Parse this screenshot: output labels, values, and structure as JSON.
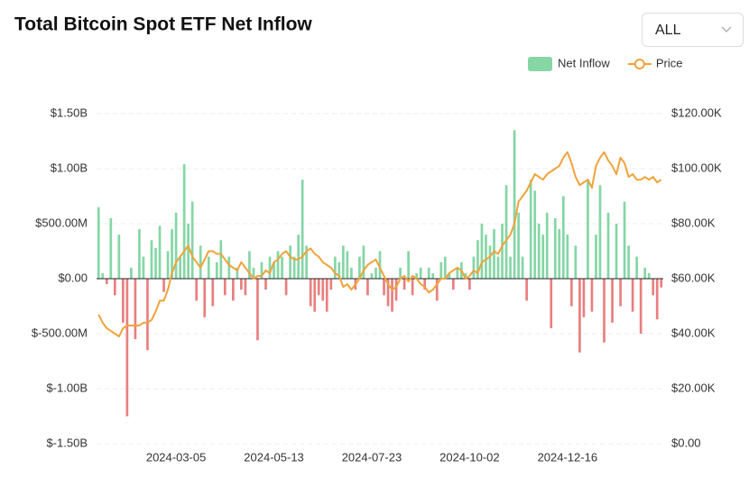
{
  "chart_data": {
    "type": "bar_line",
    "title": "Total Bitcoin Spot ETF Net Inflow",
    "categories": [
      null,
      null,
      null,
      null,
      null,
      null,
      null,
      null,
      null,
      null,
      null,
      null,
      null,
      null,
      null,
      null,
      null,
      null,
      null,
      "2024-03-05",
      null,
      null,
      null,
      null,
      null,
      null,
      null,
      null,
      null,
      null,
      null,
      null,
      null,
      null,
      null,
      null,
      null,
      null,
      null,
      null,
      null,
      null,
      null,
      "2024-05-13",
      null,
      null,
      null,
      null,
      null,
      null,
      null,
      null,
      null,
      null,
      null,
      null,
      null,
      null,
      null,
      null,
      null,
      null,
      null,
      null,
      null,
      null,
      null,
      "2024-07-23",
      null,
      null,
      null,
      null,
      null,
      null,
      null,
      null,
      null,
      null,
      null,
      null,
      null,
      null,
      null,
      null,
      null,
      null,
      null,
      null,
      null,
      null,
      null,
      "2024-10-02",
      null,
      null,
      null,
      null,
      null,
      null,
      null,
      null,
      null,
      null,
      null,
      null,
      null,
      null,
      null,
      null,
      null,
      null,
      null,
      null,
      null,
      null,
      null,
      "2024-12-16",
      null,
      null,
      null,
      null,
      null,
      null,
      null,
      null,
      null,
      null,
      null,
      null,
      null,
      null,
      null,
      null,
      null,
      null,
      null,
      null,
      null,
      null,
      null
    ],
    "series": [
      {
        "name": "Net Inflow",
        "type": "bar",
        "color": "#86d6a6",
        "negative_color": "#e88080",
        "values": [
          650000000.0,
          50000000.0,
          -50000000.0,
          550000000.0,
          -150000000.0,
          400000000.0,
          -400000000.0,
          -1250000000.0,
          100000000.0,
          -550000000.0,
          450000000.0,
          200000000.0,
          -650000000.0,
          350000000.0,
          280000000.0,
          480000000.0,
          -120000000.0,
          250000000.0,
          450000000.0,
          600000000.0,
          200000000.0,
          1040000000.0,
          500000000.0,
          700000000.0,
          -200000000.0,
          300000000.0,
          -350000000.0,
          200000000.0,
          -250000000.0,
          150000000.0,
          350000000.0,
          -150000000.0,
          200000000.0,
          -200000000.0,
          100000000.0,
          -100000000.0,
          -150000000.0,
          250000000.0,
          100000000.0,
          -560000000.0,
          150000000.0,
          -100000000.0,
          200000000.0,
          150000000.0,
          250000000.0,
          200000000.0,
          -150000000.0,
          300000000.0,
          200000000.0,
          400000000.0,
          900000000.0,
          300000000.0,
          -250000000.0,
          -300000000.0,
          -150000000.0,
          -200000000.0,
          -300000000.0,
          -100000000.0,
          200000000.0,
          150000000.0,
          300000000.0,
          250000000.0,
          100000000.0,
          -100000000.0,
          200000000.0,
          300000000.0,
          -150000000.0,
          50000000.0,
          100000000.0,
          250000000.0,
          -150000000.0,
          -250000000.0,
          -300000000.0,
          -200000000.0,
          100000000.0,
          -100000000.0,
          250000000.0,
          -150000000.0,
          50000000.0,
          100000000.0,
          -100000000.0,
          100000000.0,
          50000000.0,
          -200000000.0,
          150000000.0,
          200000000.0,
          50000000.0,
          -100000000.0,
          100000000.0,
          150000000.0,
          50000000.0,
          -100000000.0,
          200000000.0,
          350000000.0,
          500000000.0,
          400000000.0,
          300000000.0,
          450000000.0,
          200000000.0,
          500000000.0,
          850000000.0,
          200000000.0,
          1350000000.0,
          600000000.0,
          200000000.0,
          -200000000.0,
          900000000.0,
          800000000.0,
          500000000.0,
          400000000.0,
          600000000.0,
          -450000000.0,
          550000000.0,
          450000000.0,
          750000000.0,
          400000000.0,
          -250000000.0,
          300000000.0,
          -670000000.0,
          -350000000.0,
          900000000.0,
          -300000000.0,
          400000000.0,
          850000000.0,
          -580000000.0,
          600000000.0,
          -400000000.0,
          500000000.0,
          -250000000.0,
          700000000.0,
          300000000.0,
          -300000000.0,
          200000000.0,
          -500000000.0,
          100000000.0,
          50000000.0,
          -150000000.0,
          -370000000.0,
          -80000000.0
        ]
      },
      {
        "name": "Price",
        "type": "line",
        "axis": "y2",
        "color": "#f0a33a",
        "values": [
          47000,
          44000,
          42000,
          41000,
          40000,
          39000,
          42000,
          43000,
          43000,
          43000,
          43000,
          44000,
          44000,
          45000,
          48000,
          52000,
          52000,
          56000,
          62000,
          66000,
          68000,
          70000,
          72000,
          68000,
          66000,
          64000,
          67000,
          70000,
          70000,
          69000,
          69000,
          67000,
          65000,
          64000,
          63000,
          66000,
          64000,
          62000,
          60000,
          61000,
          61000,
          63000,
          62000,
          66000,
          67000,
          69000,
          70000,
          68000,
          67000,
          67000,
          68000,
          70000,
          71000,
          69000,
          68000,
          66000,
          65000,
          64000,
          62000,
          61000,
          57000,
          58000,
          56000,
          58000,
          60000,
          63000,
          65000,
          66000,
          67000,
          64000,
          61000,
          58000,
          56000,
          57000,
          60000,
          61000,
          59000,
          61000,
          60000,
          58000,
          57000,
          55000,
          56000,
          58000,
          60000,
          60000,
          62000,
          63000,
          64000,
          63000,
          60000,
          61000,
          63000,
          62000,
          66000,
          67000,
          68000,
          70000,
          69000,
          72000,
          74000,
          76000,
          80000,
          88000,
          90000,
          92000,
          95000,
          98000,
          97000,
          96000,
          98000,
          99000,
          100000,
          101000,
          104000,
          106000,
          102000,
          97000,
          94000,
          95000,
          96000,
          93000,
          101000,
          104000,
          106000,
          103000,
          101000,
          98000,
          104000,
          102000,
          97000,
          98000,
          96000,
          96000,
          97000,
          96000,
          97000,
          95000,
          96000
        ]
      }
    ],
    "ylim": [
      -1500000000.0,
      1500000000.0
    ],
    "yticks": [
      {
        "value": 1500000000.0,
        "label": "$1.50B"
      },
      {
        "value": 1000000000.0,
        "label": "$1.00B"
      },
      {
        "value": 500000000.0,
        "label": "$500.00M"
      },
      {
        "value": 0,
        "label": "$0.00"
      },
      {
        "value": -500000000.0,
        "label": "$-500.00M"
      },
      {
        "value": -1000000000.0,
        "label": "$-1.00B"
      },
      {
        "value": -1500000000.0,
        "label": "$-1.50B"
      }
    ],
    "y2lim": [
      0,
      120000
    ],
    "y2ticks": [
      {
        "value": 120000,
        "label": "$120.00K"
      },
      {
        "value": 100000,
        "label": "$100.00K"
      },
      {
        "value": 80000,
        "label": "$80.00K"
      },
      {
        "value": 60000,
        "label": "$60.00K"
      },
      {
        "value": 40000,
        "label": "$40.00K"
      },
      {
        "value": 20000,
        "label": "$20.00K"
      },
      {
        "value": 0,
        "label": "$0.00"
      }
    ],
    "grid": true,
    "legend": "top-right"
  },
  "controls": {
    "range": "ALL"
  }
}
